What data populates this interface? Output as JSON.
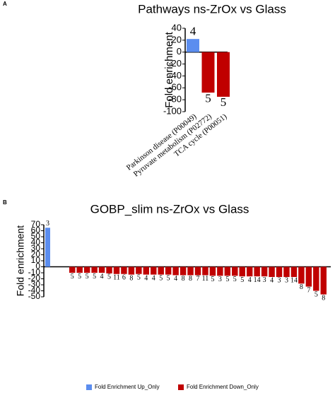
{
  "chart_data": [
    {
      "type": "bar",
      "panel": "A",
      "title": "Pathways ns-ZrOx vs Glass",
      "y_label": "Fold enrichment",
      "categories": [
        "Parkinson disease (P00049)",
        "Pyruvate metabolism (P02772)",
        "TCA cycle (P00051)"
      ],
      "values": [
        22,
        -68,
        -75
      ],
      "counts": [
        "4",
        "5",
        "5"
      ],
      "colors": [
        "#5b8def",
        "#c00000",
        "#c00000"
      ],
      "ylim": [
        -100,
        40
      ],
      "yticks": [
        40,
        20,
        0,
        -20,
        -40,
        -60,
        -80,
        -100
      ]
    },
    {
      "type": "bar",
      "panel": "B",
      "title": "GOBP_slim ns-ZrOx vs Glass",
      "y_label": "Fold enrichment",
      "categories": [
        null,
        null,
        null,
        null,
        null,
        null,
        null,
        null,
        null,
        null,
        null,
        null,
        null,
        null,
        null,
        null,
        null,
        null,
        null,
        null,
        null,
        null,
        null,
        null,
        null,
        null,
        null,
        null,
        null,
        null,
        null,
        null,
        null,
        null,
        null,
        null
      ],
      "values": [
        65,
        -10,
        -10,
        -10,
        -10,
        -10,
        -11,
        -12,
        -12,
        -13,
        -12,
        -13,
        -13,
        -13,
        -13,
        -14,
        -14,
        -14,
        -14,
        -14,
        -15,
        -15,
        -15,
        -15,
        -16,
        -16,
        -16,
        -16,
        -17,
        -17,
        -17,
        -17,
        -28,
        -33,
        -40,
        -46
      ],
      "counts": [
        "3",
        "5",
        "5",
        "5",
        "5",
        "4",
        "5",
        "11",
        "6",
        "8",
        "5",
        "4",
        "4",
        "5",
        "5",
        "4",
        "8",
        "8",
        "7",
        "11",
        "5",
        "3",
        "5",
        "5",
        "5",
        "4",
        "14",
        "3",
        "4",
        "3",
        "3",
        "14",
        "8",
        "7",
        "5",
        "8"
      ],
      "colors": [
        "#5b8def",
        "#c00000",
        "#c00000",
        "#c00000",
        "#c00000",
        "#c00000",
        "#c00000",
        "#c00000",
        "#c00000",
        "#c00000",
        "#c00000",
        "#c00000",
        "#c00000",
        "#c00000",
        "#c00000",
        "#c00000",
        "#c00000",
        "#c00000",
        "#c00000",
        "#c00000",
        "#c00000",
        "#c00000",
        "#c00000",
        "#c00000",
        "#c00000",
        "#c00000",
        "#c00000",
        "#c00000",
        "#c00000",
        "#c00000",
        "#c00000",
        "#c00000",
        "#c00000",
        "#c00000",
        "#c00000",
        "#c00000"
      ],
      "ylim": [
        -50,
        70
      ],
      "yticks": [
        70,
        60,
        50,
        40,
        30,
        20,
        10,
        0,
        -10,
        -20,
        -30,
        -40,
        -50
      ],
      "legend": [
        {
          "name": "Fold Enrichment Up_Only",
          "color": "#5b8def"
        },
        {
          "name": "Fold Enrichment Down_Only",
          "color": "#c00000"
        }
      ]
    }
  ]
}
